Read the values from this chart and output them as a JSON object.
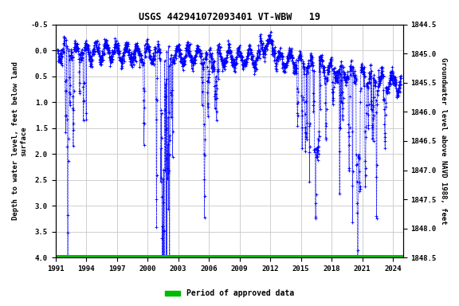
{
  "title": "USGS 442941072093401 VT-WBW   19",
  "ylabel_left": "Depth to water level, feet below land\nsurface",
  "ylabel_right": "Groundwater level above NAVD 1988, feet",
  "ylim_left": [
    -0.5,
    4.0
  ],
  "ylim_right": [
    1848.5,
    1844.5
  ],
  "xlim": [
    1991,
    2025
  ],
  "xticks": [
    1991,
    1994,
    1997,
    2000,
    2003,
    2006,
    2009,
    2012,
    2015,
    2018,
    2021,
    2024
  ],
  "yticks_left": [
    -0.5,
    0.0,
    0.5,
    1.0,
    1.5,
    2.0,
    2.5,
    3.0,
    3.5,
    4.0
  ],
  "yticks_right": [
    1848.5,
    1848.0,
    1847.5,
    1847.0,
    1846.5,
    1846.0,
    1845.5,
    1845.0,
    1844.5
  ],
  "data_color": "#0000FF",
  "approved_color": "#00BB00",
  "legend_label": "Period of approved data",
  "background_color": "#ffffff",
  "grid_color": "#c8c8c8",
  "land_surface_elev": 1848.0
}
